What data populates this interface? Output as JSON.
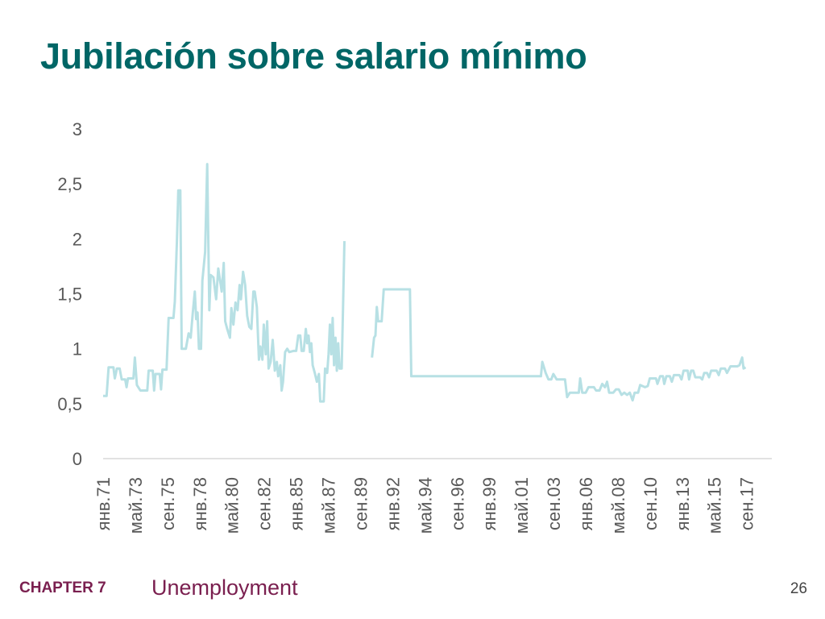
{
  "slide": {
    "title": "Jubilación sobre salario mínimo",
    "footer": {
      "chapter": "CHAPTER 7",
      "subject": "Unemployment",
      "page": "26"
    }
  },
  "colors": {
    "title": "#006666",
    "line": "#b7e0e4",
    "axis": "#d9d9d9",
    "tick_text": "#595959",
    "footer": "#7a1f4f"
  },
  "chart_data": {
    "type": "line",
    "title": "",
    "xlabel": "",
    "ylabel": "",
    "x_range": [
      1971.0,
      2019.5
    ],
    "ylim": [
      0,
      3
    ],
    "grid": false,
    "legend": "none",
    "y_ticks": [
      0,
      0.5,
      1,
      1.5,
      2,
      2.5,
      3
    ],
    "y_tick_labels": [
      "0",
      "0,5",
      "1",
      "1,5",
      "2",
      "2,5",
      "3"
    ],
    "x_ticks": [
      {
        "label": "янв.71",
        "x": 1971.0
      },
      {
        "label": "май.73",
        "x": 1973.33
      },
      {
        "label": "сен.75",
        "x": 1975.67
      },
      {
        "label": "янв.78",
        "x": 1978.0
      },
      {
        "label": "май.80",
        "x": 1980.33
      },
      {
        "label": "сен.82",
        "x": 1982.67
      },
      {
        "label": "янв.85",
        "x": 1985.0
      },
      {
        "label": "май.87",
        "x": 1987.33
      },
      {
        "label": "сен.89",
        "x": 1989.67
      },
      {
        "label": "янв.92",
        "x": 1992.0
      },
      {
        "label": "май.94",
        "x": 1994.33
      },
      {
        "label": "сен.96",
        "x": 1996.67
      },
      {
        "label": "янв.99",
        "x": 1999.0
      },
      {
        "label": "май.01",
        "x": 2001.33
      },
      {
        "label": "сен.03",
        "x": 2003.67
      },
      {
        "label": "янв.06",
        "x": 2006.0
      },
      {
        "label": "май.08",
        "x": 2008.33
      },
      {
        "label": "сен.10",
        "x": 2010.67
      },
      {
        "label": "янв.13",
        "x": 2013.0
      },
      {
        "label": "май.15",
        "x": 2015.33
      },
      {
        "label": "сен.17",
        "x": 2017.67
      }
    ],
    "series": [
      {
        "segments": [
          [
            [
              1971.0,
              0.57
            ],
            [
              1971.25,
              0.57
            ],
            [
              1971.4,
              0.83
            ],
            [
              1971.75,
              0.83
            ],
            [
              1971.85,
              0.73
            ],
            [
              1972.0,
              0.82
            ],
            [
              1972.2,
              0.82
            ],
            [
              1972.35,
              0.72
            ],
            [
              1972.6,
              0.72
            ],
            [
              1972.7,
              0.65
            ],
            [
              1972.8,
              0.73
            ],
            [
              1973.2,
              0.73
            ],
            [
              1973.3,
              0.92
            ],
            [
              1973.45,
              0.67
            ],
            [
              1973.7,
              0.62
            ],
            [
              1974.2,
              0.62
            ],
            [
              1974.3,
              0.8
            ],
            [
              1974.6,
              0.8
            ],
            [
              1974.7,
              0.62
            ],
            [
              1974.8,
              0.77
            ],
            [
              1975.1,
              0.77
            ],
            [
              1975.2,
              0.63
            ],
            [
              1975.3,
              0.81
            ],
            [
              1975.6,
              0.81
            ],
            [
              1975.75,
              1.28
            ],
            [
              1976.1,
              1.28
            ],
            [
              1976.2,
              1.43
            ],
            [
              1976.35,
              1.98
            ],
            [
              1976.45,
              2.44
            ],
            [
              1976.6,
              2.44
            ],
            [
              1976.7,
              1.0
            ],
            [
              1977.0,
              1.0
            ],
            [
              1977.2,
              1.14
            ],
            [
              1977.35,
              1.1
            ],
            [
              1977.5,
              1.32
            ],
            [
              1977.65,
              1.52
            ],
            [
              1977.75,
              1.27
            ],
            [
              1977.85,
              1.33
            ],
            [
              1977.95,
              1.0
            ],
            [
              1978.1,
              1.0
            ],
            [
              1978.2,
              1.62
            ],
            [
              1978.4,
              1.88
            ],
            [
              1978.55,
              2.68
            ],
            [
              1978.7,
              1.35
            ],
            [
              1978.8,
              1.67
            ],
            [
              1979.0,
              1.65
            ],
            [
              1979.2,
              1.45
            ],
            [
              1979.35,
              1.73
            ],
            [
              1979.6,
              1.52
            ],
            [
              1979.75,
              1.78
            ],
            [
              1979.85,
              1.25
            ],
            [
              1980.0,
              1.18
            ],
            [
              1980.2,
              1.1
            ],
            [
              1980.3,
              1.37
            ],
            [
              1980.45,
              1.22
            ],
            [
              1980.6,
              1.42
            ],
            [
              1980.75,
              1.35
            ],
            [
              1980.9,
              1.58
            ],
            [
              1981.0,
              1.45
            ],
            [
              1981.15,
              1.7
            ],
            [
              1981.3,
              1.58
            ],
            [
              1981.45,
              1.3
            ],
            [
              1981.6,
              1.2
            ],
            [
              1981.75,
              1.18
            ],
            [
              1981.9,
              1.52
            ],
            [
              1982.0,
              1.52
            ],
            [
              1982.15,
              1.38
            ],
            [
              1982.3,
              0.9
            ],
            [
              1982.4,
              1.02
            ],
            [
              1982.55,
              0.9
            ],
            [
              1982.65,
              1.22
            ],
            [
              1982.8,
              0.95
            ],
            [
              1982.9,
              1.25
            ],
            [
              1983.0,
              0.82
            ],
            [
              1983.15,
              0.88
            ],
            [
              1983.3,
              1.08
            ],
            [
              1983.45,
              0.8
            ],
            [
              1983.6,
              0.88
            ],
            [
              1983.7,
              0.75
            ],
            [
              1983.85,
              0.85
            ],
            [
              1983.95,
              0.62
            ],
            [
              1984.05,
              0.7
            ],
            [
              1984.2,
              0.97
            ],
            [
              1984.35,
              1.0
            ],
            [
              1984.5,
              0.97
            ],
            [
              1984.8,
              0.98
            ],
            [
              1985.0,
              0.98
            ],
            [
              1985.15,
              1.12
            ],
            [
              1985.3,
              1.12
            ],
            [
              1985.4,
              0.98
            ],
            [
              1985.55,
              0.98
            ],
            [
              1985.7,
              1.18
            ],
            [
              1985.8,
              1.05
            ],
            [
              1985.9,
              1.12
            ],
            [
              1986.0,
              0.97
            ],
            [
              1986.1,
              1.05
            ],
            [
              1986.2,
              0.85
            ],
            [
              1986.35,
              0.78
            ],
            [
              1986.5,
              0.7
            ],
            [
              1986.65,
              0.77
            ],
            [
              1986.75,
              0.52
            ],
            [
              1987.0,
              0.52
            ],
            [
              1987.1,
              0.82
            ],
            [
              1987.25,
              0.78
            ],
            [
              1987.35,
              0.95
            ],
            [
              1987.45,
              1.22
            ],
            [
              1987.55,
              0.95
            ],
            [
              1987.65,
              1.28
            ],
            [
              1987.75,
              0.85
            ],
            [
              1987.85,
              1.1
            ],
            [
              1987.95,
              0.8
            ],
            [
              1988.05,
              1.05
            ],
            [
              1988.15,
              0.82
            ],
            [
              1988.3,
              0.82
            ],
            [
              1988.4,
              1.38
            ],
            [
              1988.5,
              1.98
            ]
          ],
          [
            [
              1990.5,
              0.92
            ],
            [
              1990.65,
              1.1
            ],
            [
              1990.75,
              1.12
            ],
            [
              1990.85,
              1.38
            ],
            [
              1990.95,
              1.25
            ],
            [
              1991.2,
              1.25
            ],
            [
              1991.35,
              1.54
            ],
            [
              1993.25,
              1.54
            ],
            [
              1993.35,
              0.75
            ],
            [
              2002.75,
              0.75
            ],
            [
              2002.85,
              0.88
            ],
            [
              2003.1,
              0.78
            ],
            [
              2003.3,
              0.72
            ],
            [
              2003.5,
              0.72
            ],
            [
              2003.65,
              0.77
            ],
            [
              2003.9,
              0.72
            ],
            [
              2004.5,
              0.72
            ],
            [
              2004.65,
              0.56
            ],
            [
              2004.85,
              0.6
            ],
            [
              2005.5,
              0.6
            ],
            [
              2005.6,
              0.73
            ],
            [
              2005.75,
              0.6
            ],
            [
              2006.0,
              0.6
            ],
            [
              2006.2,
              0.65
            ],
            [
              2006.6,
              0.65
            ],
            [
              2006.75,
              0.62
            ],
            [
              2007.0,
              0.62
            ],
            [
              2007.2,
              0.68
            ],
            [
              2007.4,
              0.65
            ],
            [
              2007.55,
              0.7
            ],
            [
              2007.7,
              0.6
            ],
            [
              2008.0,
              0.6
            ],
            [
              2008.2,
              0.63
            ],
            [
              2008.4,
              0.63
            ],
            [
              2008.6,
              0.58
            ],
            [
              2008.8,
              0.6
            ],
            [
              2009.0,
              0.58
            ],
            [
              2009.2,
              0.6
            ],
            [
              2009.4,
              0.53
            ],
            [
              2009.55,
              0.6
            ],
            [
              2009.8,
              0.6
            ],
            [
              2009.95,
              0.67
            ],
            [
              2010.3,
              0.65
            ],
            [
              2010.5,
              0.66
            ],
            [
              2010.65,
              0.73
            ],
            [
              2011.1,
              0.73
            ],
            [
              2011.2,
              0.68
            ],
            [
              2011.4,
              0.75
            ],
            [
              2011.6,
              0.75
            ],
            [
              2011.7,
              0.68
            ],
            [
              2011.85,
              0.75
            ],
            [
              2012.1,
              0.75
            ],
            [
              2012.25,
              0.7
            ],
            [
              2012.4,
              0.76
            ],
            [
              2012.8,
              0.76
            ],
            [
              2012.95,
              0.72
            ],
            [
              2013.1,
              0.8
            ],
            [
              2013.4,
              0.8
            ],
            [
              2013.5,
              0.72
            ],
            [
              2013.65,
              0.8
            ],
            [
              2013.8,
              0.8
            ],
            [
              2013.95,
              0.74
            ],
            [
              2014.3,
              0.74
            ],
            [
              2014.45,
              0.72
            ],
            [
              2014.6,
              0.78
            ],
            [
              2014.8,
              0.78
            ],
            [
              2014.95,
              0.74
            ],
            [
              2015.1,
              0.8
            ],
            [
              2015.5,
              0.8
            ],
            [
              2015.65,
              0.76
            ],
            [
              2015.8,
              0.82
            ],
            [
              2016.1,
              0.82
            ],
            [
              2016.25,
              0.78
            ],
            [
              2016.5,
              0.84
            ],
            [
              2017.0,
              0.84
            ],
            [
              2017.15,
              0.85
            ],
            [
              2017.35,
              0.92
            ],
            [
              2017.45,
              0.82
            ],
            [
              2017.6,
              0.83
            ]
          ]
        ]
      }
    ]
  }
}
